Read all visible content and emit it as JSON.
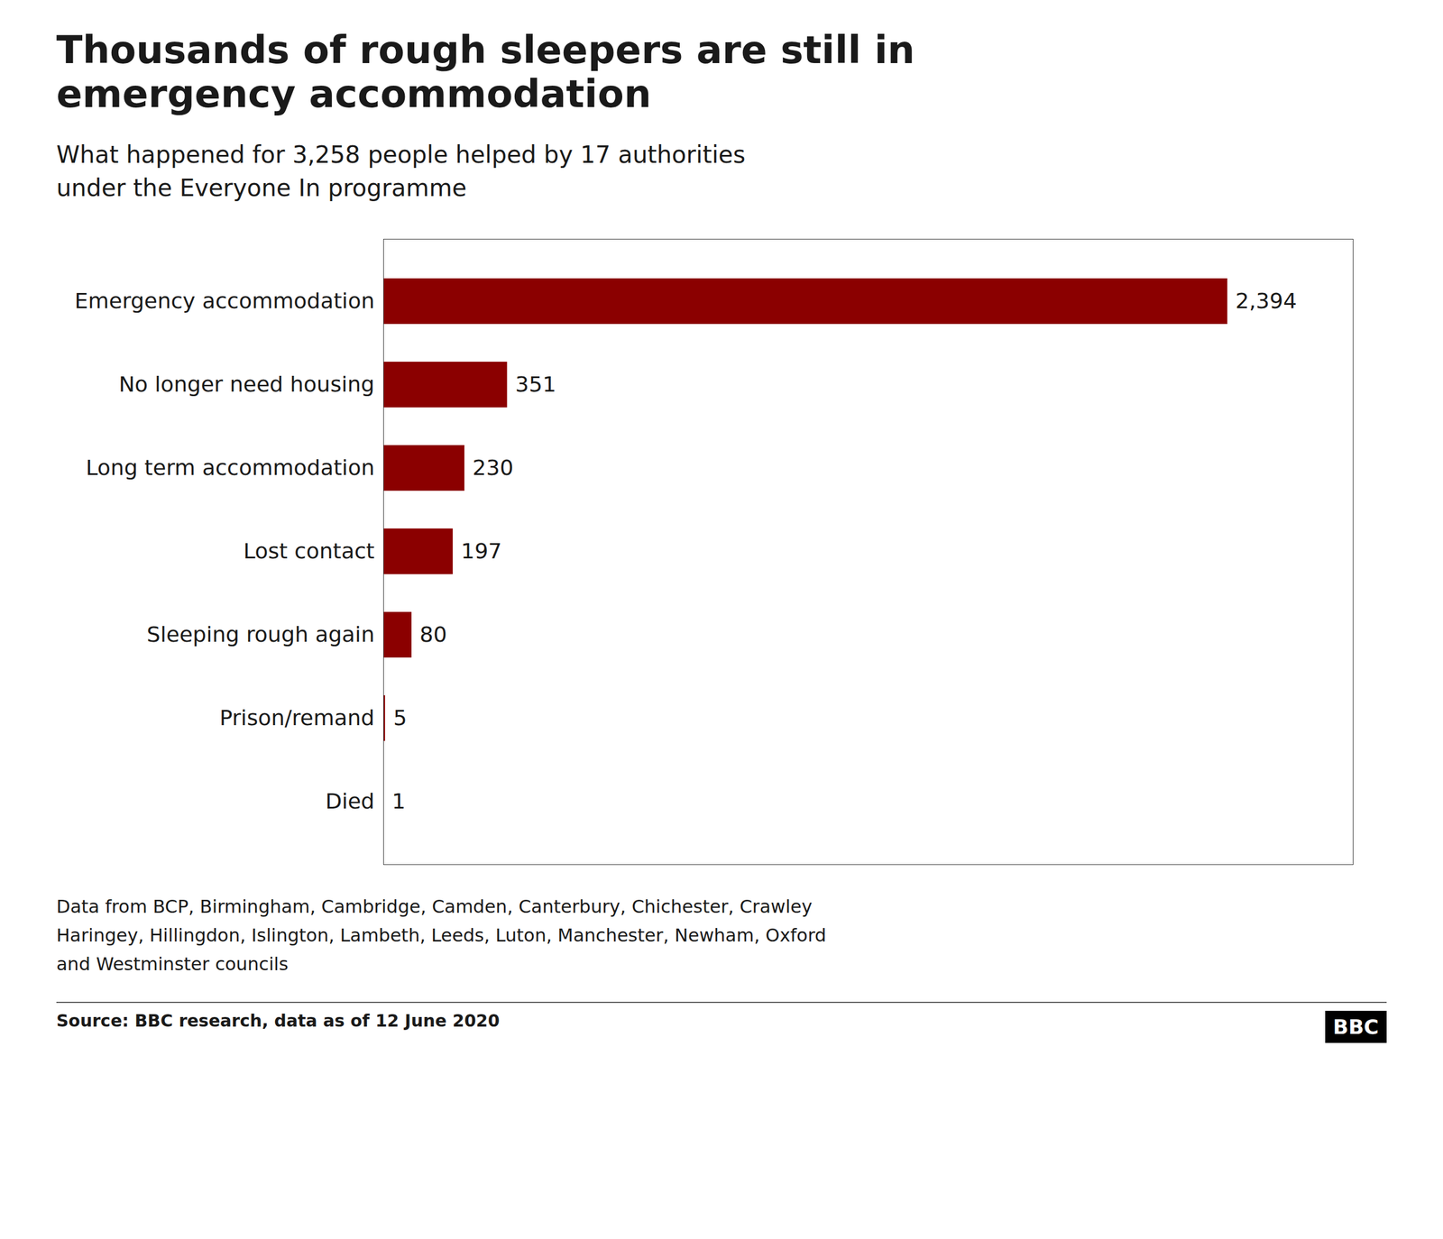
{
  "chart_data": {
    "type": "bar",
    "orientation": "horizontal",
    "title": "Thousands of rough sleepers are still in\nemergency accommodation",
    "subtitle": "What happened for 3,258 people helped by 17 authorities\nunder the Everyone In programme",
    "categories": [
      "Emergency accommodation",
      "No longer need housing",
      "Long term accommodation",
      "Lost contact",
      "Sleeping rough again",
      "Prison/remand",
      "Died"
    ],
    "values": [
      2394,
      351,
      230,
      197,
      80,
      5,
      1
    ],
    "value_labels": [
      "2,394",
      "351",
      "230",
      "197",
      "80",
      "5",
      "1"
    ],
    "data_labels": true,
    "color": "#8B0000",
    "xlim": [
      0,
      2750
    ],
    "tick_labels": "y",
    "grid": false,
    "annotations": [
      "Data from BCP, Birmingham, Cambridge, Camden, Canterbury, Chichester, Crawley\nHaringey, Hillingdon, Islington, Lambeth, Leeds, Luton, Manchester, Newham, Oxford\nand Westminster councils",
      "Source: BBC research, data as of 12 June 2020",
      "BBC"
    ]
  }
}
